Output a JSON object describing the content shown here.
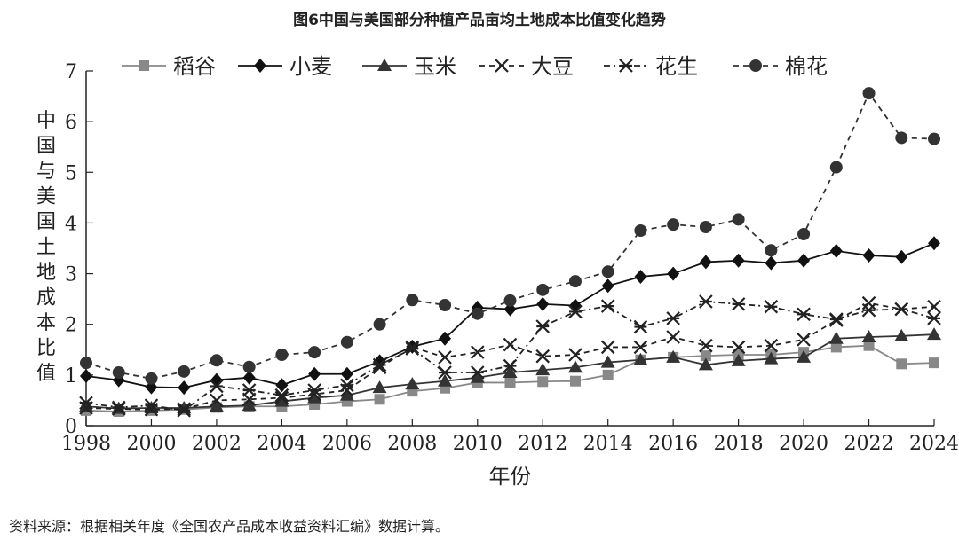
{
  "header": {
    "title": "图6中国与美国部分种植产品亩均土地成本比值变化趋势"
  },
  "footer": {
    "source": "资料来源：根据相关年度《全国农产品成本收益资料汇编》数据计算。"
  },
  "chart_data": {
    "type": "line",
    "title": "图6中国与美国部分种植产品亩均土地成本比值变化趋势",
    "xlabel": "年份",
    "ylabel": "中国与美国土地成本比值",
    "xlim": [
      1998,
      2024
    ],
    "ylim": [
      0,
      7
    ],
    "x_ticks": [
      1998,
      2000,
      2002,
      2004,
      2006,
      2008,
      2010,
      2012,
      2014,
      2016,
      2018,
      2020,
      2022,
      2024
    ],
    "y_ticks": [
      0,
      1,
      2,
      3,
      4,
      5,
      6,
      7
    ],
    "grid": false,
    "legend_position": "top",
    "x": [
      1998,
      1999,
      2000,
      2001,
      2002,
      2003,
      2004,
      2005,
      2006,
      2007,
      2008,
      2009,
      2010,
      2011,
      2012,
      2013,
      2014,
      2015,
      2016,
      2017,
      2018,
      2019,
      2020,
      2021,
      2022,
      2023,
      2024
    ],
    "series": [
      {
        "name": "稻谷",
        "marker": "square",
        "dash": "solid",
        "color": "#888888",
        "values": [
          0.3,
          0.28,
          0.3,
          0.32,
          0.36,
          0.38,
          0.38,
          0.42,
          0.48,
          0.52,
          0.68,
          0.74,
          0.85,
          0.85,
          0.87,
          0.88,
          1.0,
          1.3,
          1.35,
          1.38,
          1.4,
          1.4,
          1.45,
          1.55,
          1.58,
          1.22,
          1.24
        ]
      },
      {
        "name": "小麦",
        "marker": "diamond",
        "dash": "solid",
        "color": "#111111",
        "values": [
          0.98,
          0.9,
          0.76,
          0.75,
          0.9,
          0.95,
          0.8,
          1.02,
          1.02,
          1.27,
          1.56,
          1.72,
          2.33,
          2.3,
          2.4,
          2.37,
          2.76,
          2.94,
          3.0,
          3.23,
          3.26,
          3.21,
          3.26,
          3.45,
          3.36,
          3.33,
          3.6
        ]
      },
      {
        "name": "玉米",
        "marker": "triangle",
        "dash": "solid",
        "color": "#333333",
        "values": [
          0.38,
          0.34,
          0.35,
          0.35,
          0.38,
          0.4,
          0.48,
          0.55,
          0.6,
          0.75,
          0.82,
          0.88,
          0.95,
          1.05,
          1.1,
          1.15,
          1.25,
          1.3,
          1.35,
          1.2,
          1.28,
          1.32,
          1.35,
          1.72,
          1.75,
          1.77,
          1.8
        ]
      },
      {
        "name": "大豆",
        "marker": "x",
        "dash": "dashed",
        "color": "#222222",
        "values": [
          0.35,
          0.33,
          0.32,
          0.33,
          0.5,
          0.52,
          0.55,
          0.62,
          0.7,
          1.15,
          1.55,
          1.35,
          1.45,
          1.6,
          1.37,
          1.4,
          1.55,
          1.55,
          1.75,
          1.58,
          1.55,
          1.58,
          1.7,
          2.08,
          2.42,
          2.3,
          2.35
        ]
      },
      {
        "name": "花生",
        "marker": "asterisk",
        "dash": "dashdot",
        "color": "#222222",
        "values": [
          0.45,
          0.36,
          0.4,
          0.3,
          0.78,
          0.7,
          0.6,
          0.7,
          0.8,
          1.2,
          1.52,
          1.05,
          1.05,
          1.18,
          1.96,
          2.25,
          2.36,
          1.95,
          2.12,
          2.45,
          2.4,
          2.35,
          2.2,
          2.1,
          2.28,
          2.3,
          2.12
        ]
      },
      {
        "name": "棉花",
        "marker": "circle",
        "dash": "dashed",
        "color": "#333333",
        "values": [
          1.24,
          1.05,
          0.93,
          1.07,
          1.29,
          1.16,
          1.4,
          1.45,
          1.65,
          2.0,
          2.48,
          2.38,
          2.21,
          2.47,
          2.68,
          2.85,
          3.04,
          3.85,
          3.97,
          3.92,
          4.07,
          3.46,
          3.78,
          5.1,
          6.56,
          5.68,
          5.66
        ]
      }
    ]
  }
}
